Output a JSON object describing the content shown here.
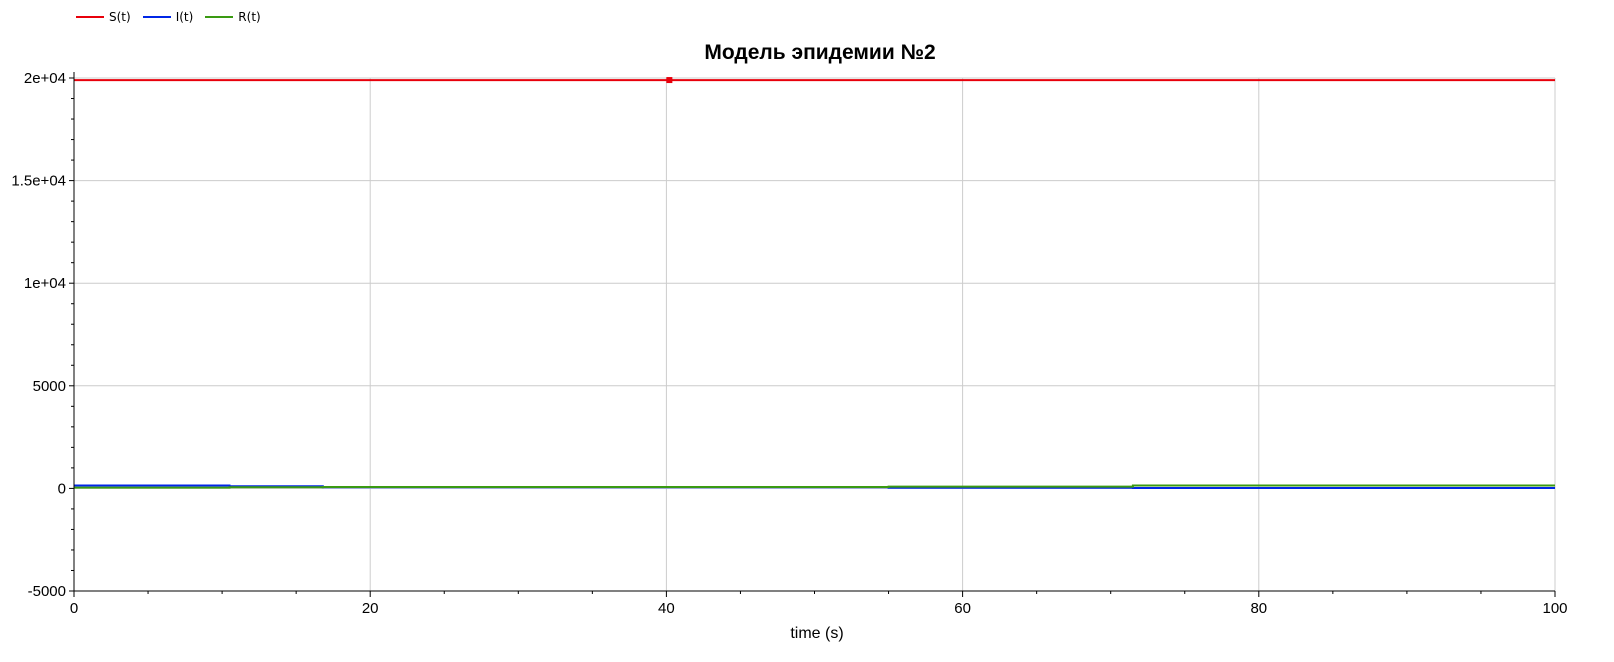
{
  "chart_data": {
    "type": "line",
    "title": "Модель эпидемии №2",
    "xlabel": "time (s)",
    "ylabel": "",
    "xlim": [
      0,
      100
    ],
    "ylim": [
      -5000,
      20000
    ],
    "xticks": [
      0,
      20,
      40,
      60,
      80,
      100
    ],
    "xtick_labels": [
      "0",
      "20",
      "40",
      "60",
      "80",
      "100"
    ],
    "yticks": [
      -5000,
      0,
      5000,
      10000,
      15000,
      20000
    ],
    "ytick_labels": [
      "-5000",
      "0",
      "5000",
      "1e+04",
      "1.5e+04",
      "2e+04"
    ],
    "grid": true,
    "legend_position": "top-left",
    "series": [
      {
        "name": "S(t)",
        "color": "#e8000b",
        "x": [
          0,
          100
        ],
        "y": [
          19900,
          19900
        ]
      },
      {
        "name": "I(t)",
        "color": "#0026e6",
        "x": [
          0,
          10.5,
          10.5,
          16.8,
          16.8,
          55,
          55,
          71.5,
          71.5,
          100
        ],
        "y": [
          140,
          140,
          100,
          100,
          60,
          60,
          30,
          30,
          20,
          20
        ]
      },
      {
        "name": "R(t)",
        "color": "#3a9a12",
        "x": [
          0,
          10.5,
          10.5,
          16.8,
          16.8,
          55,
          55,
          71.5,
          71.5,
          100
        ],
        "y": [
          40,
          40,
          60,
          60,
          70,
          70,
          90,
          90,
          140,
          140
        ]
      }
    ],
    "markers": [
      {
        "series": "S(t)",
        "x": 40.2,
        "y": 19900,
        "color": "#e8000b"
      }
    ]
  }
}
